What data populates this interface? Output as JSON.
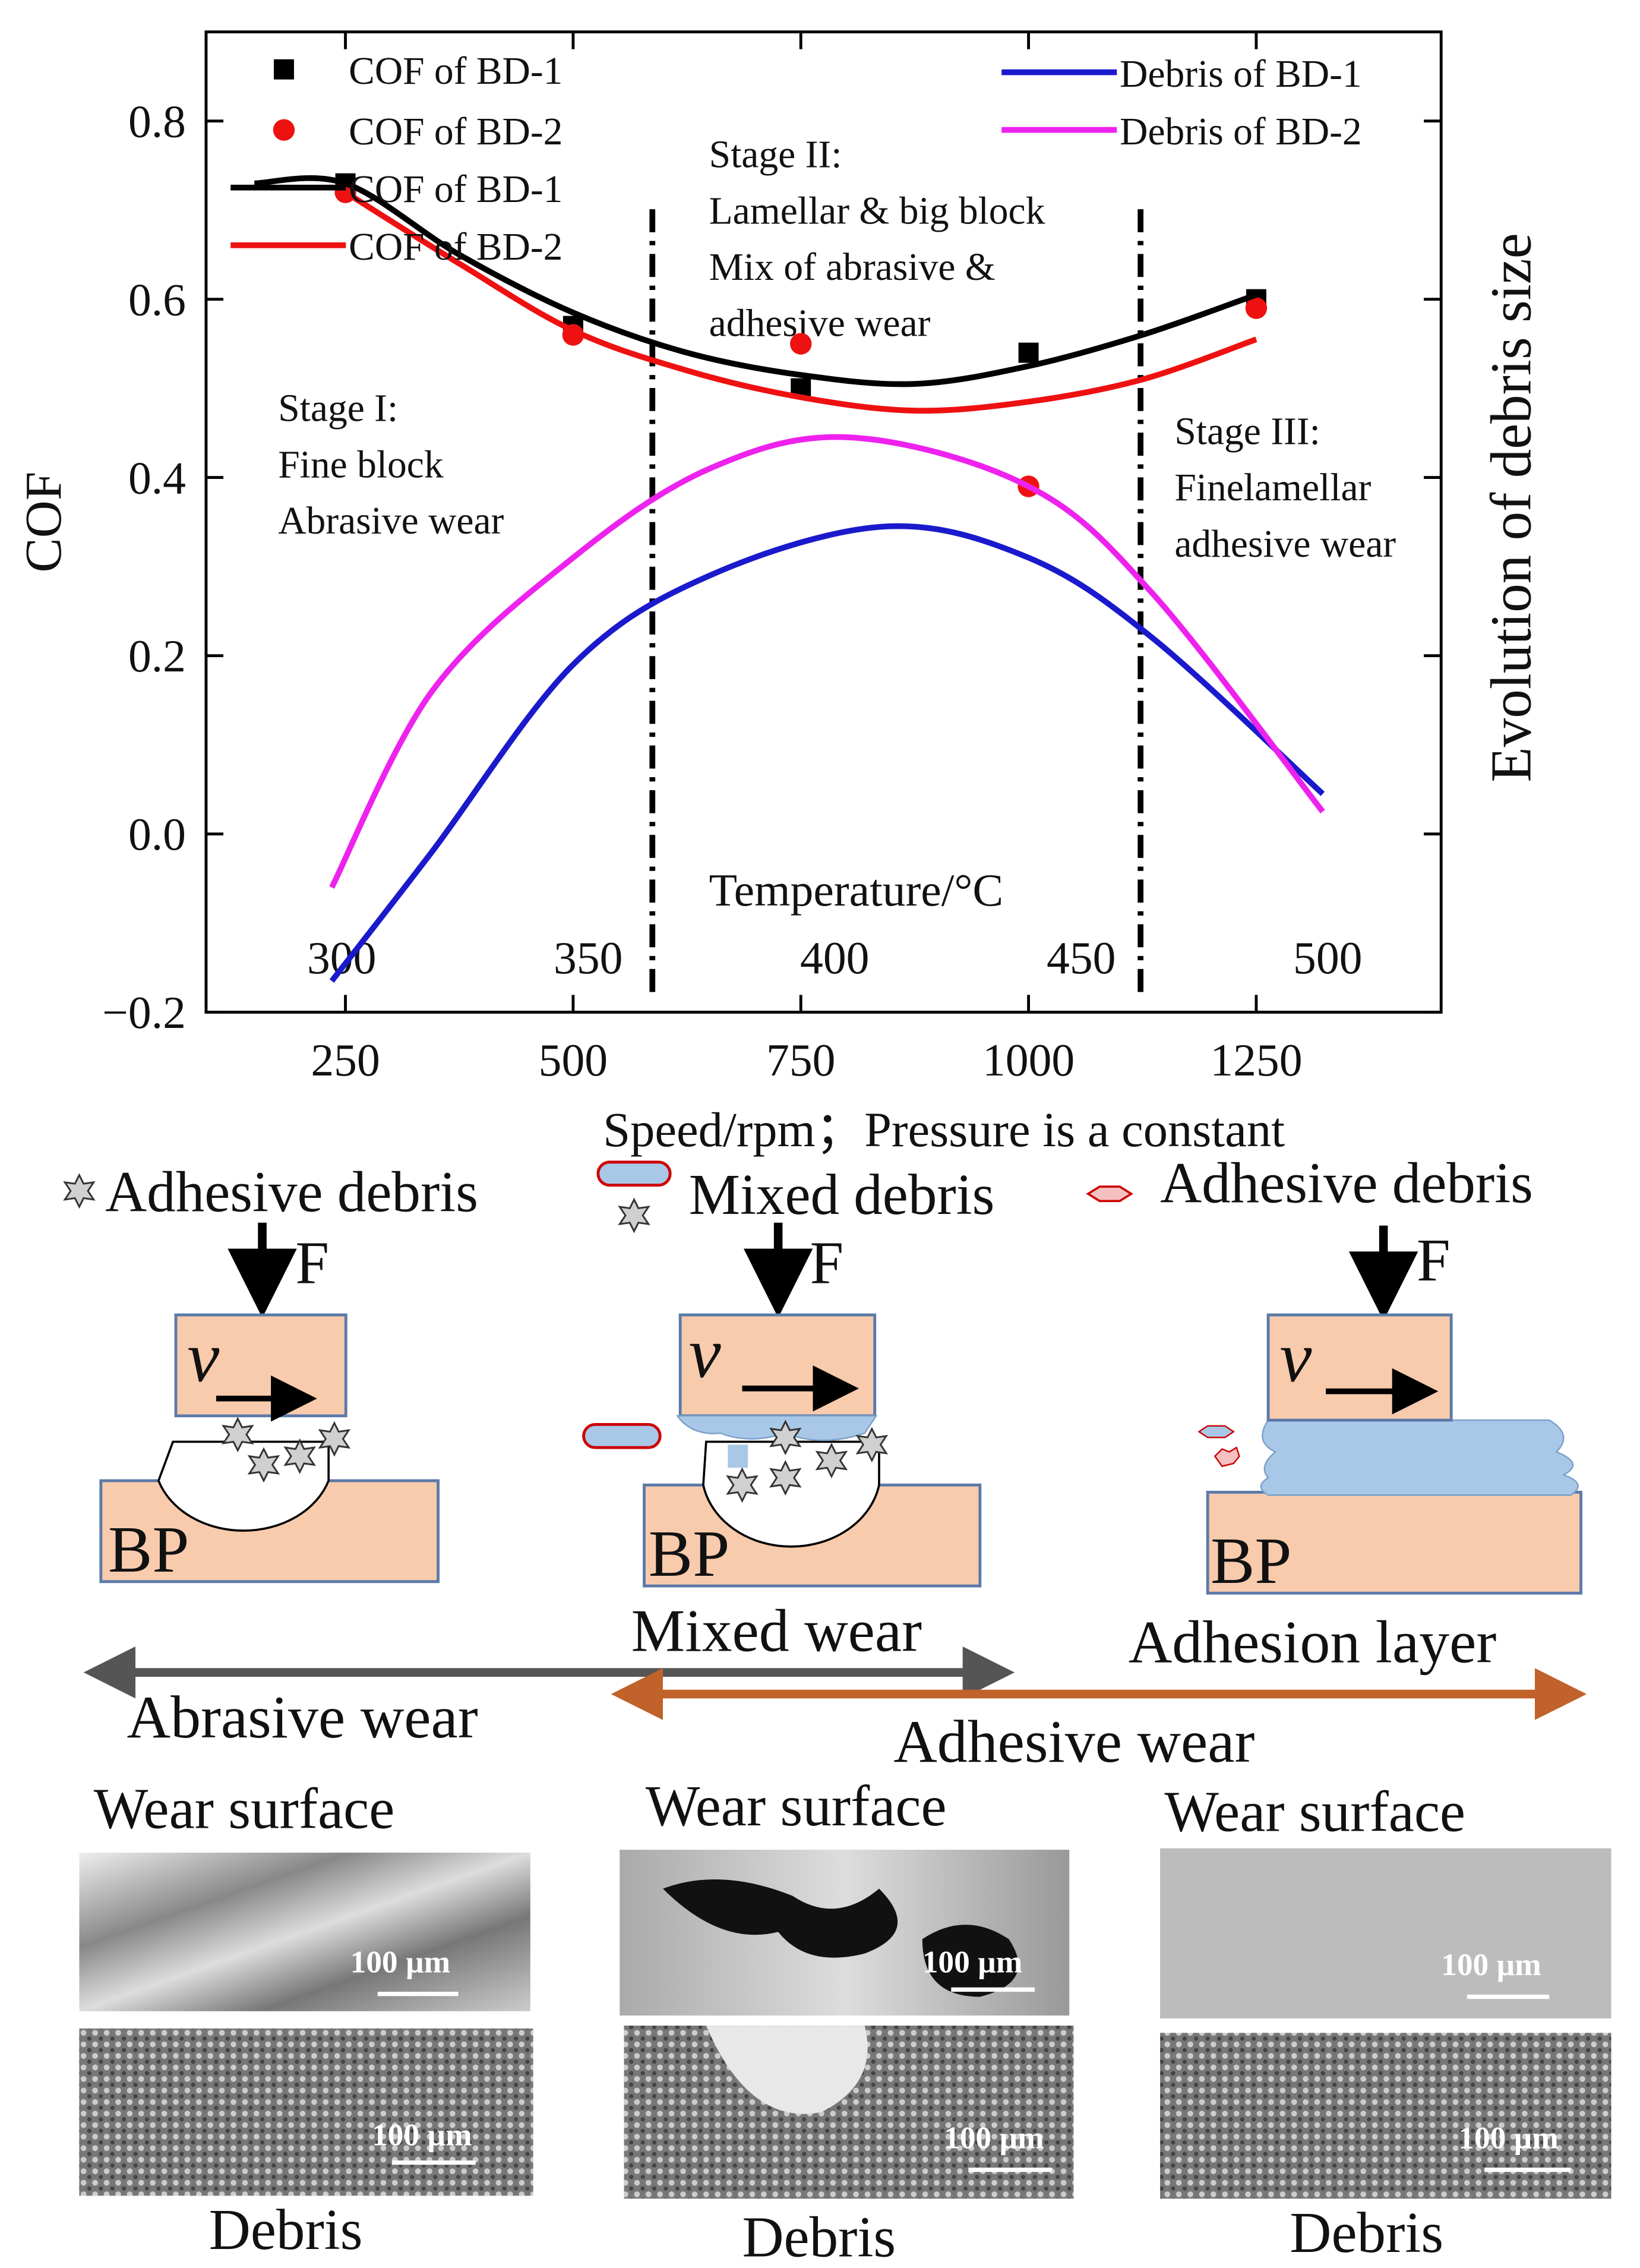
{
  "chart_data": {
    "type": "scatter",
    "xlabel": "Speed/rpm；Pressure is a constant",
    "ylabel": "COF",
    "y2label": "Evolution of debris size",
    "xlim": [
      97,
      1453
    ],
    "xticks": [
      250,
      500,
      750,
      1000,
      1250
    ],
    "ylim": [
      -0.2,
      0.9
    ],
    "yticks": [
      {
        "value": -0.2,
        "label": "−0.2"
      },
      {
        "value": 0,
        "label": "0.0"
      },
      0.2,
      0.4,
      0.6,
      0.8
    ],
    "x2label": "Temperature/°C",
    "x2lim": [
      272.5,
      523
    ],
    "x2ticks": [
      300,
      350,
      400,
      450,
      500
    ],
    "stage_boundaries": [
      587,
      1123
    ],
    "annotations": [
      [
        "Stage I:",
        "Fine block",
        "Abrasive wear"
      ],
      [
        "Stage II:",
        "Lamellar & big block",
        "Mix of abrasive &",
        "adhesive wear"
      ],
      [
        "Stage III:",
        "Finelamellar",
        "adhesive wear"
      ]
    ],
    "series": [
      {
        "name": "COF of BD-1",
        "color": "#000000",
        "marker": "square",
        "x": [
          250,
          500,
          750,
          1000,
          1250
        ],
        "values": [
          0.73,
          0.57,
          0.5,
          0.54,
          0.6
        ]
      },
      {
        "name": "COF of BD-2",
        "color": "#ee1111",
        "marker": "circle",
        "x": [
          250,
          500,
          750,
          1000,
          1250
        ],
        "values": [
          0.72,
          0.56,
          0.55,
          0.39,
          0.59
        ]
      },
      {
        "name": "COF of BD-1",
        "color": "#000000",
        "marker": "line",
        "x": [
          150,
          250,
          375,
          500,
          625,
          750,
          875,
          1000,
          1125,
          1250
        ],
        "values": [
          0.73,
          0.73,
          0.65,
          0.585,
          0.54,
          0.515,
          0.505,
          0.525,
          0.56,
          0.605
        ]
      },
      {
        "name": "COF of BD-2",
        "color": "#ee1111",
        "marker": "line",
        "x": [
          250,
          375,
          500,
          625,
          750,
          875,
          1000,
          1125,
          1250
        ],
        "values": [
          0.72,
          0.64,
          0.565,
          0.52,
          0.49,
          0.475,
          0.485,
          0.51,
          0.555
        ]
      },
      {
        "name": "Debris of BD-1",
        "color": "#1a1acc",
        "marker": "line",
        "x": [
          235,
          345,
          500,
          650,
          843,
          1000,
          1136,
          1323
        ],
        "values": [
          -0.165,
          -0.02,
          0.19,
          0.29,
          0.345,
          0.31,
          0.22,
          0.045
        ]
      },
      {
        "name": "Debris of BD-2",
        "color": "#ee22ee",
        "marker": "line",
        "x": [
          235,
          345,
          500,
          650,
          804,
          1000,
          1136,
          1323
        ],
        "values": [
          -0.06,
          0.16,
          0.31,
          0.41,
          0.445,
          0.39,
          0.27,
          0.025
        ]
      }
    ]
  },
  "diagram": {
    "legend": [
      "Adhesive debris",
      "Mixed debris",
      "Adhesive debris"
    ],
    "force": [
      "F",
      "F",
      "F"
    ],
    "velocity": [
      "v",
      "v",
      "v"
    ],
    "base": [
      "BP",
      "BP",
      "BP"
    ],
    "wear_labels": [
      "Mixed wear",
      "Adhesion layer"
    ],
    "regimes": [
      "Abrasive wear",
      "Adhesive wear"
    ],
    "surface_titles": [
      "Wear surface",
      "Wear surface",
      "Wear surface"
    ],
    "debris_titles": [
      "Debris",
      "Debris",
      "Debris"
    ],
    "scale_bars": [
      "100 µm",
      "100 µm",
      "100 µm",
      "100 µm",
      "100 µm",
      "100 µm"
    ]
  }
}
